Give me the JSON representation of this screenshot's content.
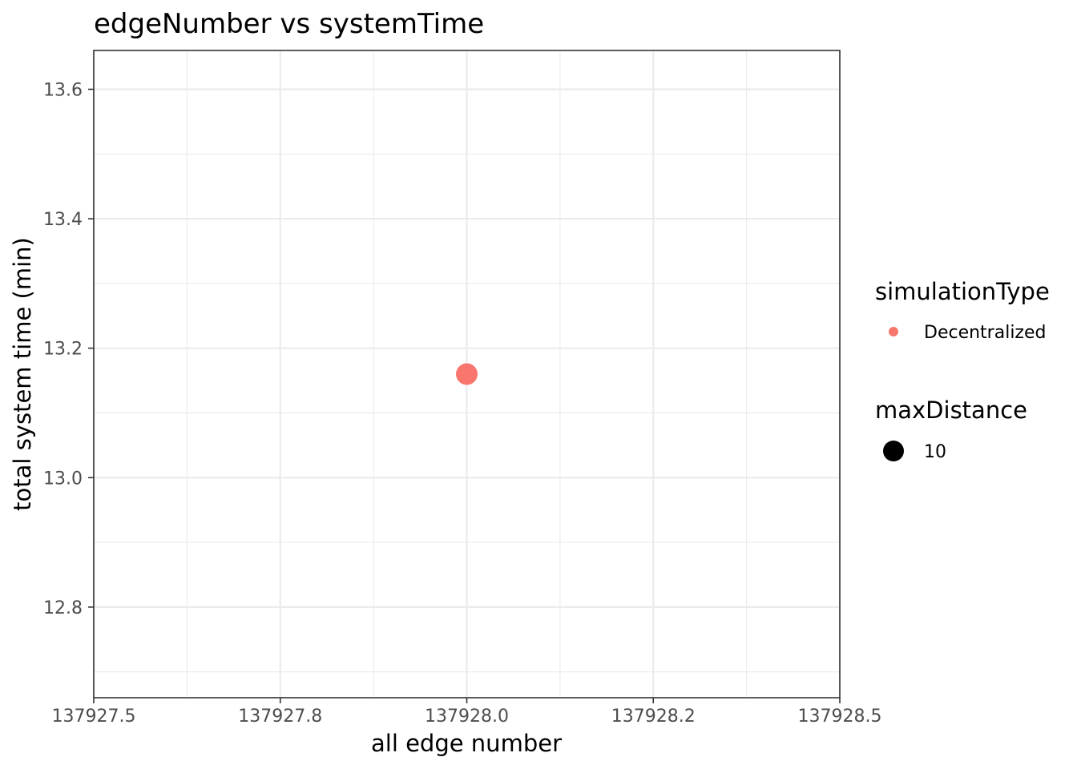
{
  "chart_data": {
    "type": "scatter",
    "title": "edgeNumber vs systemTime",
    "xlabel": "all edge number",
    "ylabel": "total system time (min)",
    "xlim": [
      137927.5,
      137928.5
    ],
    "ylim": [
      12.66,
      13.66
    ],
    "x_ticks": [
      137927.5,
      137927.75,
      137928.0,
      137928.25,
      137928.5
    ],
    "x_tick_labels": [
      "137927.5",
      "137927.8",
      "137928.0",
      "137928.2",
      "137928.5"
    ],
    "y_ticks": [
      12.8,
      13.0,
      13.2,
      13.4,
      13.6
    ],
    "y_tick_labels": [
      "12.8",
      "13.0",
      "13.2",
      "13.4",
      "13.6"
    ],
    "grid": true,
    "points": [
      {
        "x": 137928.0,
        "y": 13.16,
        "simulationType": "Decentralized",
        "maxDistance": 10
      }
    ],
    "legend": {
      "position": "right",
      "color": {
        "title": "simulationType",
        "items": [
          {
            "label": "Decentralized",
            "color": "#F8766D"
          }
        ]
      },
      "size": {
        "title": "maxDistance",
        "items": [
          {
            "label": "10"
          }
        ]
      }
    }
  }
}
